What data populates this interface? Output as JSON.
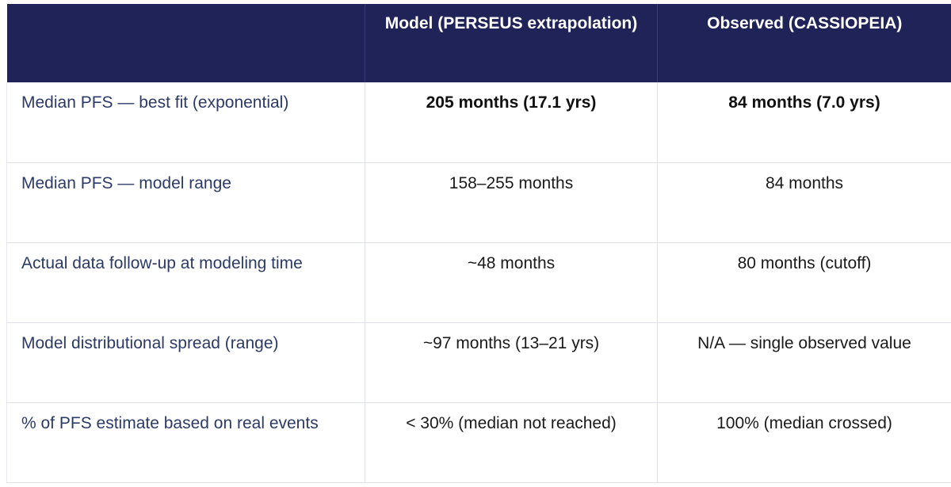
{
  "table": {
    "headers": [
      "",
      "Model (PERSEUS extrapolation)",
      "Observed (CASSIOPEIA)"
    ],
    "rows": [
      {
        "label": "Median PFS — best fit (exponential)",
        "model": "205 months (17.1 yrs)",
        "observed": "84 months (7.0 yrs)",
        "values_bold": true
      },
      {
        "label": "Median PFS — model range",
        "model": "158–255 months",
        "observed": "84 months",
        "values_bold": false
      },
      {
        "label": "Actual data follow-up at modeling time",
        "model": "~48 months",
        "observed": "80 months (cutoff)",
        "values_bold": false
      },
      {
        "label": "Model distributional spread (range)",
        "model": "~97 months (13–21 yrs)",
        "observed": "N/A — single observed value",
        "values_bold": false
      },
      {
        "label": "% of PFS estimate based on real events",
        "model": "< 30% (median not reached)",
        "observed": "100% (median crossed)",
        "values_bold": false
      }
    ]
  },
  "colors": {
    "header_background": "#1f2358",
    "header_text": "#ffffff",
    "label_text": "#2b3a67",
    "grid_lines": "#dfe2ea"
  }
}
